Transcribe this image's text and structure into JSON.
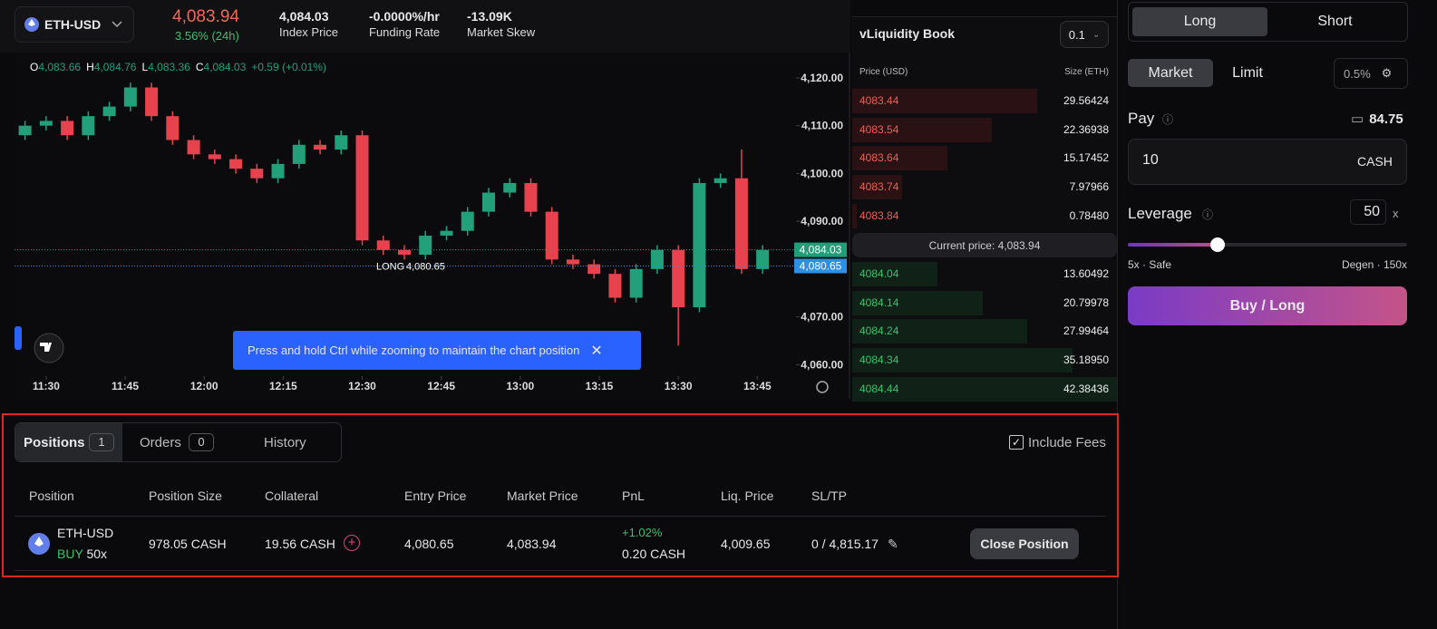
{
  "header": {
    "pair": "ETH-USD",
    "price": "4,083.94",
    "change": "3.56% (24h)",
    "stats": [
      {
        "value": "4,084.03",
        "label": "Index Price"
      },
      {
        "value": "-0.0000%/hr",
        "label": "Funding Rate"
      },
      {
        "value": "-13.09K",
        "label": "Market Skew"
      }
    ]
  },
  "chart_data": {
    "type": "candlestick",
    "ohlc_legend": [
      {
        "key": "O",
        "value": "4,083.66"
      },
      {
        "key": "H",
        "value": "4,084.76"
      },
      {
        "key": "L",
        "value": "4,083.36"
      },
      {
        "key": "C",
        "value": "4,084.03"
      }
    ],
    "change": "+0.59 (+0.01%)",
    "x": [
      "11:26",
      "11:30",
      "11:34",
      "11:38",
      "11:42",
      "11:46",
      "11:50",
      "11:54",
      "11:58",
      "12:02",
      "12:06",
      "12:10",
      "12:14",
      "12:18",
      "12:22",
      "12:26",
      "12:30",
      "12:34",
      "12:38",
      "12:42",
      "12:46",
      "12:50",
      "12:54",
      "12:58",
      "13:02",
      "13:06",
      "13:10",
      "13:14",
      "13:18",
      "13:22",
      "13:26",
      "13:30",
      "13:34",
      "13:38",
      "13:42",
      "13:46"
    ],
    "open": [
      4108,
      4110,
      4111,
      4108,
      4112,
      4114,
      4118,
      4112,
      4107,
      4104,
      4103,
      4101,
      4099,
      4102,
      4106,
      4105,
      4108,
      4086,
      4084,
      4083,
      4087,
      4088,
      4092,
      4096,
      4098,
      4092,
      4082,
      4081,
      4079,
      4074,
      4080,
      4084,
      4072,
      4098,
      4099,
      4080
    ],
    "high": [
      4111,
      4112,
      4112,
      4113,
      4115,
      4119,
      4119,
      4113,
      4108,
      4105,
      4104,
      4102,
      4103,
      4107,
      4107,
      4109,
      4109,
      4087,
      4085,
      4088,
      4089,
      4093,
      4097,
      4099,
      4099,
      4093,
      4083,
      4082,
      4080,
      4081,
      4085,
      4085,
      4099,
      4100,
      4105,
      4085
    ],
    "low": [
      4107,
      4109,
      4107,
      4107,
      4111,
      4113,
      4111,
      4106,
      4103,
      4102,
      4100,
      4098,
      4098,
      4101,
      4104,
      4104,
      4085,
      4083,
      4082,
      4082,
      4086,
      4087,
      4091,
      4095,
      4091,
      4081,
      4080,
      4078,
      4073,
      4073,
      4079,
      4064,
      4071,
      4097,
      4079,
      4079
    ],
    "close": [
      4110,
      4111,
      4108,
      4112,
      4114,
      4118,
      4112,
      4107,
      4104,
      4103,
      4101,
      4099,
      4102,
      4106,
      4105,
      4108,
      4086,
      4084,
      4083,
      4087,
      4088,
      4092,
      4096,
      4098,
      4092,
      4082,
      4081,
      4079,
      4074,
      4080,
      4084,
      4072,
      4098,
      4099,
      4080,
      4084
    ],
    "xlim": [
      "11:24",
      "13:52"
    ],
    "ylim": [
      4057.6,
      4125.3
    ],
    "xticks": [
      "11:30",
      "11:45",
      "12:00",
      "12:15",
      "12:30",
      "12:45",
      "13:00",
      "13:15",
      "13:30",
      "13:45"
    ],
    "yticks": [
      {
        "value": 4120,
        "label": "4,120.00"
      },
      {
        "value": 4110,
        "label": "4,110.00"
      },
      {
        "value": 4100,
        "label": "4,100.00"
      },
      {
        "value": 4090,
        "label": "4,090.00"
      },
      {
        "value": 4070,
        "label": "4,070.00"
      },
      {
        "value": 4060,
        "label": "4,060.00"
      }
    ],
    "price_lines": [
      {
        "value": 4084.03,
        "label": "4,084.03",
        "color": "#1f9e78"
      },
      {
        "value": 4080.65,
        "label": "4,080.65",
        "color": "#2c8fe8",
        "name": "LONG"
      }
    ],
    "up_color": "#22a07a",
    "down_color": "#e8424f"
  },
  "toast": "Press and hold Ctrl while zooming to maintain the chart position",
  "order_book": {
    "title": "vLiquidity Book",
    "step": "0.1",
    "price_header": "Price (USD)",
    "size_header": "Size (ETH)",
    "asks": {
      "prices": [
        4083.44,
        4083.54,
        4083.64,
        4083.74,
        4083.84
      ],
      "sizes": [
        29.56424,
        22.36938,
        15.17452,
        7.97966,
        0.7848
      ],
      "value_labels": [
        "29.56424",
        "22.36938",
        "15.17452",
        "7.97966",
        "0.78480"
      ],
      "color": "#ef5f4f"
    },
    "current": "Current price: 4,083.94",
    "bids": {
      "prices": [
        4084.04,
        4084.14,
        4084.24,
        4084.34,
        4084.44
      ],
      "sizes": [
        13.60492,
        20.79978,
        27.99464,
        35.1895,
        42.38436
      ],
      "value_labels": [
        "13.60492",
        "20.79978",
        "27.99464",
        "35.18950",
        "42.38436"
      ],
      "color": "#34c46c"
    }
  },
  "trade_panel": {
    "sides": [
      "Long",
      "Short"
    ],
    "order_types": [
      "Market",
      "Limit"
    ],
    "slippage": "0.5%",
    "pay_label": "Pay",
    "balance": "84.75",
    "pay_amount": "10",
    "pay_unit": "CASH",
    "leverage_label": "Leverage",
    "leverage": "50",
    "leverage_unit": "x",
    "leverage_min": "5x · Safe",
    "leverage_max": "Degen · 150x",
    "submit": "Buy / Long"
  },
  "positions": {
    "tabs": [
      {
        "label": "Positions",
        "count": 1
      },
      {
        "label": "Orders",
        "count": 0
      },
      {
        "label": "History"
      }
    ],
    "include_fees": "Include Fees",
    "columns": [
      "Position",
      "Position Size",
      "Collateral",
      "Entry Price",
      "Market Price",
      "PnL",
      "Liq. Price",
      "SL/TP"
    ],
    "rows": [
      {
        "market": "ETH-USD",
        "side": "BUY",
        "leverage": "50x",
        "size": "978.05 CASH",
        "collateral": "19.56 CASH",
        "entry": "4,080.65",
        "market_price": "4,083.94",
        "pnl_pct": "+1.02%",
        "pnl": "0.20 CASH",
        "liq": "4,009.65",
        "sltp": "0 / 4,815.17",
        "action": "Close Position"
      }
    ]
  }
}
